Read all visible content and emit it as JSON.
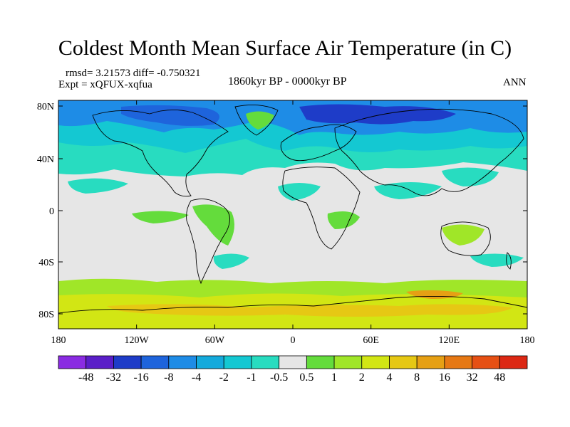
{
  "title": "Coldest Month Mean Surface Air Temperature (in C)",
  "stats_text": "rmsd= 3.21573  diff= -0.750321",
  "expt_text": "Expt = xQFUX-xqfua",
  "period_text": "1860kyr BP - 0000kyr BP",
  "season_text": "ANN",
  "map": {
    "lat_ticks": [
      "80N",
      "40N",
      "0",
      "40S",
      "80S"
    ],
    "lon_ticks": [
      "180",
      "120W",
      "60W",
      "0",
      "60E",
      "120E",
      "180"
    ],
    "background_color": "#e6e6e6"
  },
  "colorbar": {
    "labels": [
      "-48",
      "-32",
      "-16",
      "-8",
      "-4",
      "-2",
      "-1",
      "-0.5",
      "0.5",
      "1",
      "2",
      "4",
      "8",
      "16",
      "32",
      "48"
    ],
    "colors": [
      "#8a2be2",
      "#5a1ec8",
      "#1e3cc8",
      "#1e64dc",
      "#1e8ce6",
      "#14aadc",
      "#14c8d2",
      "#28dcc0",
      "#e6e6e6",
      "#64dc3c",
      "#a0e628",
      "#d2e614",
      "#e6c814",
      "#e6a014",
      "#e67814",
      "#e65014",
      "#dc2814"
    ]
  }
}
